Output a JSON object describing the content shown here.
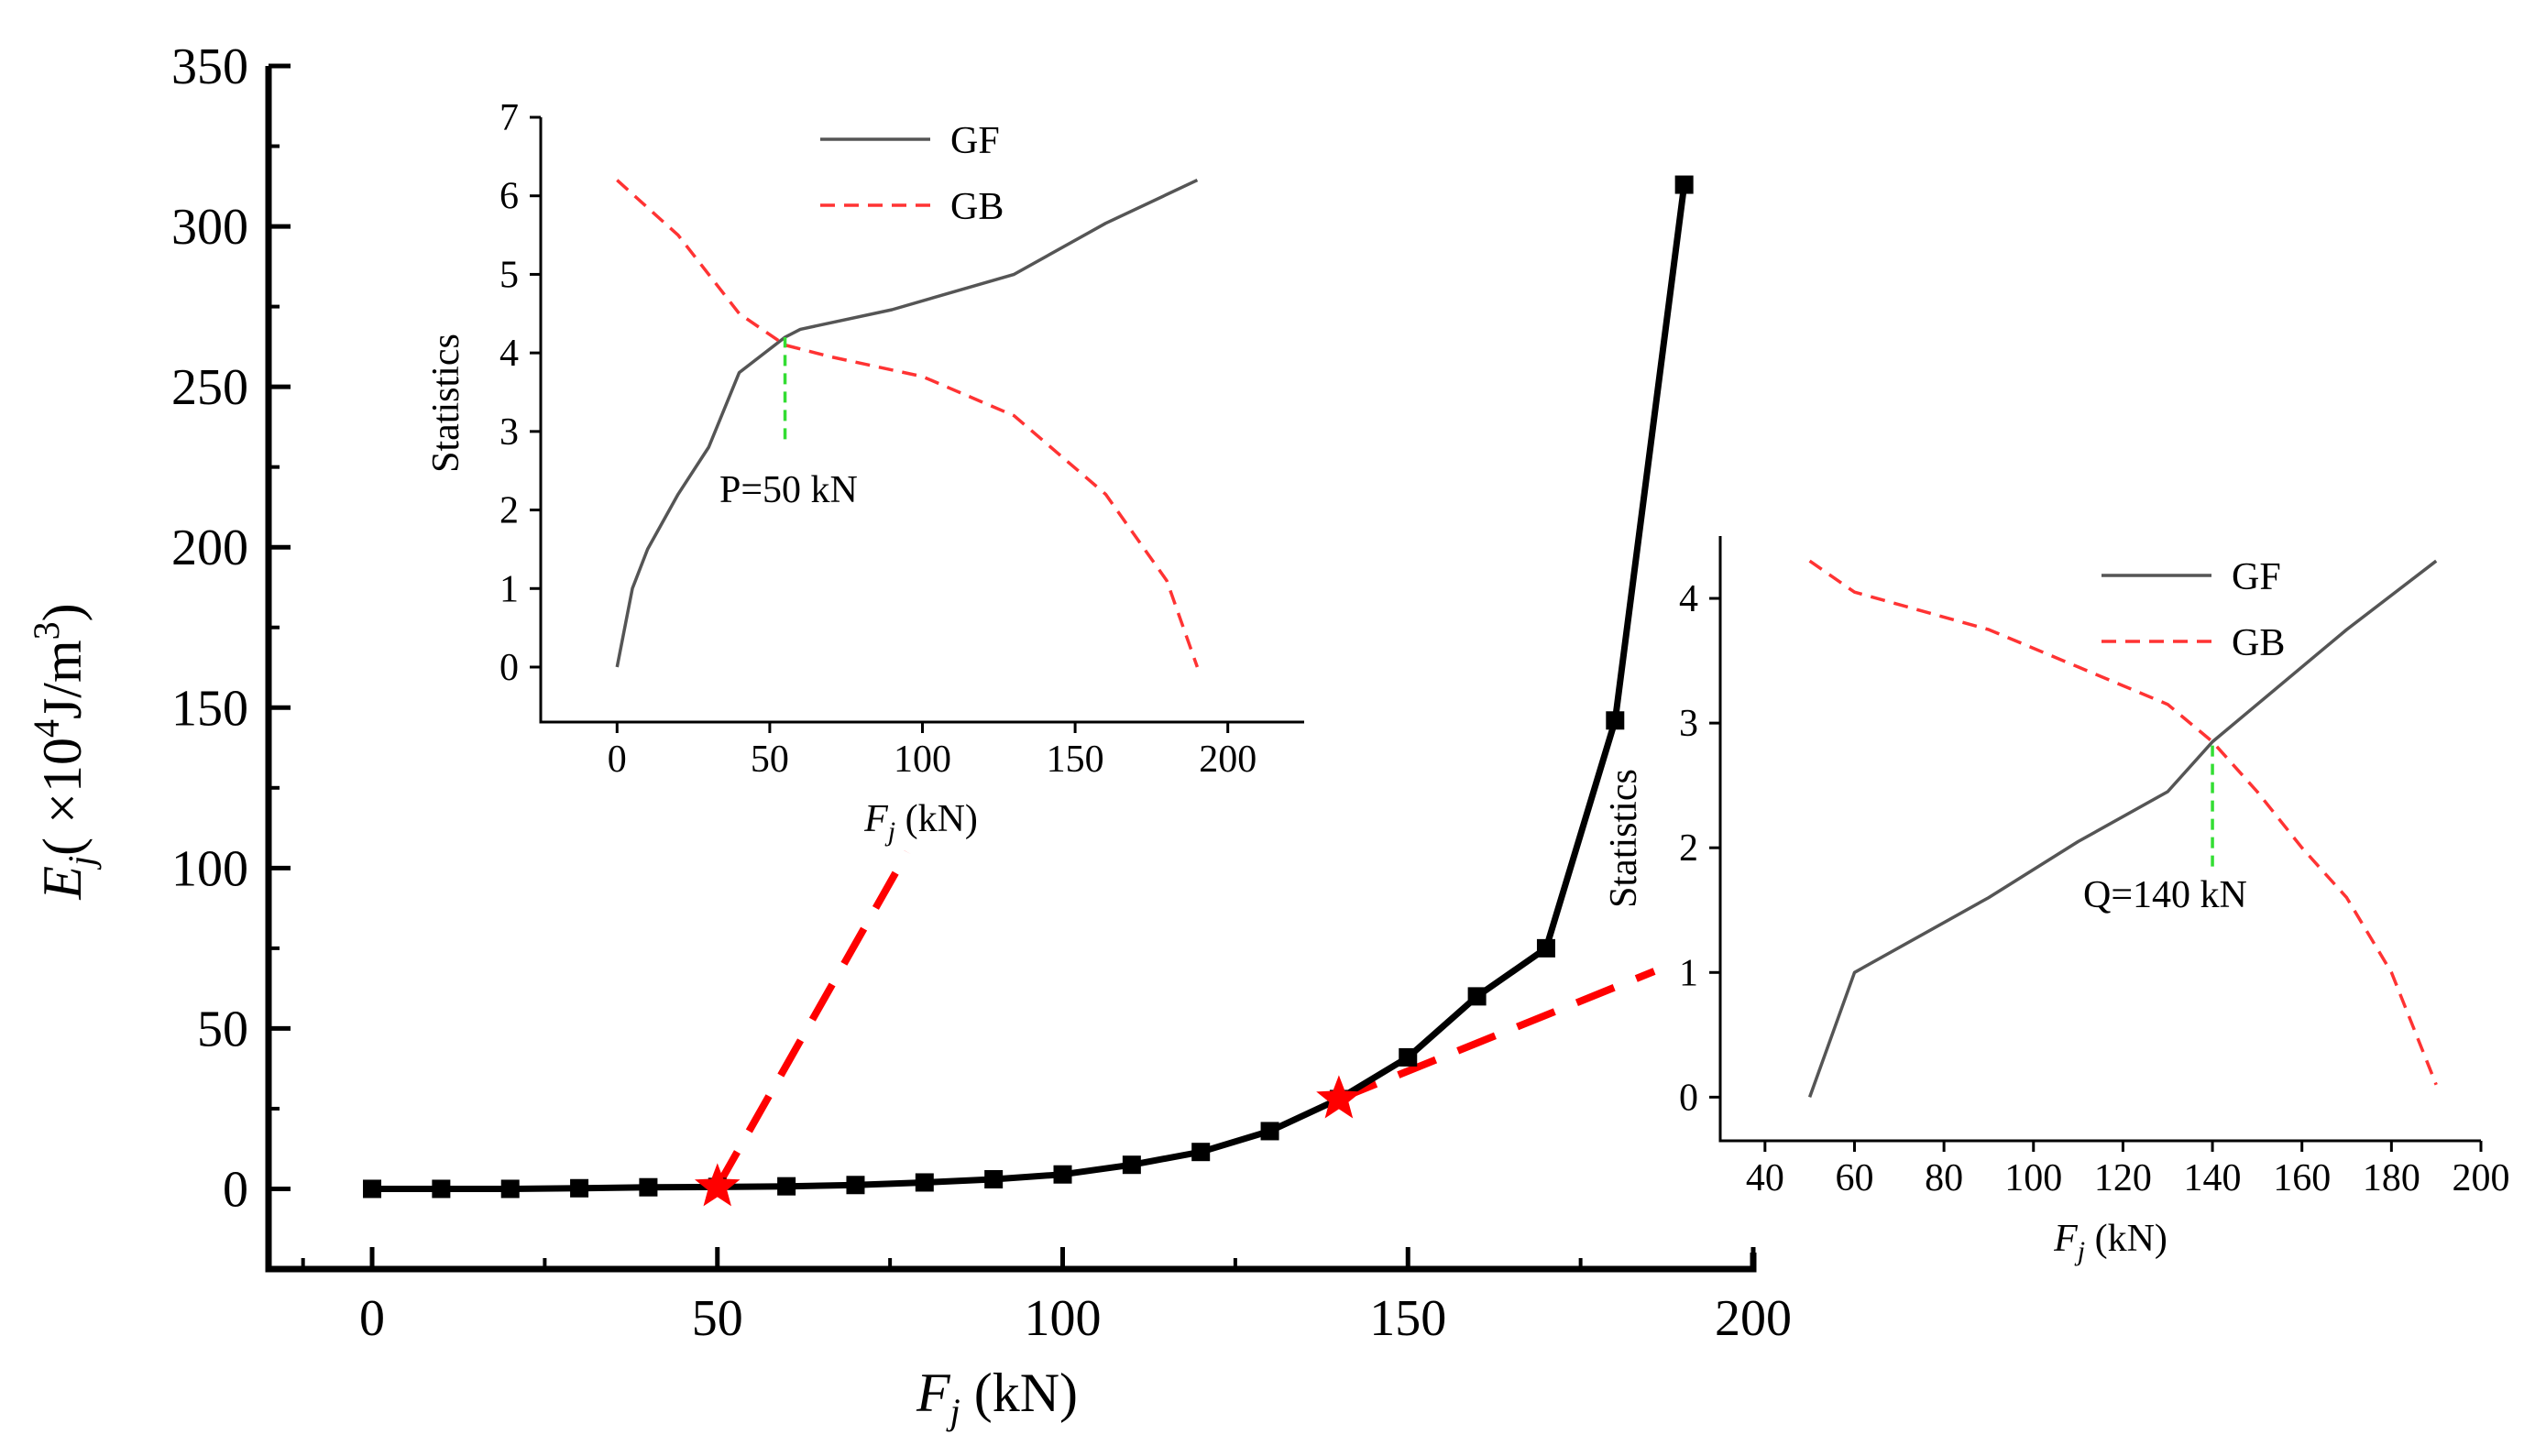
{
  "chart_data": [
    {
      "id": "main",
      "type": "line",
      "title": "",
      "xlabel": "F",
      "xlabel_sub": "j",
      "xlabel_unit": " (kN)",
      "ylabel": "E",
      "ylabel_sub": "j",
      "ylabel_unit_pre": "( ×10",
      "ylabel_unit_sup": "4",
      "ylabel_unit_mid": "J/m",
      "ylabel_unit_sup2": "3",
      "ylabel_unit_post": ")",
      "xlim": [
        -15,
        200
      ],
      "ylim": [
        -25,
        350
      ],
      "xticks": [
        0,
        50,
        100,
        150,
        200
      ],
      "yticks": [
        0,
        50,
        100,
        150,
        200,
        250,
        300,
        350
      ],
      "x": [
        0,
        10,
        20,
        30,
        40,
        50,
        60,
        70,
        80,
        90,
        100,
        110,
        120,
        130,
        140,
        150,
        160,
        170,
        180,
        190
      ],
      "y": [
        0,
        0,
        0,
        0.2,
        0.5,
        0.6,
        0.8,
        1.2,
        2,
        3,
        4.5,
        7.5,
        11.5,
        18,
        28,
        41,
        60,
        75,
        146,
        313
      ],
      "stars": [
        {
          "x": 50,
          "y": 0.6
        },
        {
          "x": 140,
          "y": 28
        }
      ],
      "colors": {
        "line": "#000000",
        "star": "#ff0000",
        "connector": "#ff0000"
      }
    },
    {
      "id": "inset-p",
      "type": "line",
      "xlabel": "F",
      "xlabel_sub": "j",
      "xlabel_unit": " (kN)",
      "ylabel": "Statistics",
      "xlim": [
        -25,
        225
      ],
      "ylim": [
        -0.7,
        7
      ],
      "xticks": [
        0,
        50,
        100,
        150,
        200
      ],
      "yticks": [
        0,
        1,
        2,
        3,
        4,
        5,
        6,
        7
      ],
      "series": [
        {
          "name": "GF",
          "x": [
            0,
            5,
            10,
            20,
            30,
            40,
            50,
            55,
            60,
            90,
            130,
            160,
            190
          ],
          "y": [
            0,
            1,
            1.5,
            2.2,
            2.8,
            3.75,
            4.05,
            4.2,
            4.3,
            4.55,
            5,
            5.65,
            6.2
          ],
          "color": "#555555",
          "dash": "solid"
        },
        {
          "name": "GB",
          "x": [
            0,
            20,
            40,
            55,
            70,
            100,
            130,
            160,
            180,
            190
          ],
          "y": [
            6.2,
            5.5,
            4.5,
            4.1,
            3.95,
            3.7,
            3.2,
            2.2,
            1.1,
            0
          ],
          "color": "#ff3333",
          "dash": "dashed"
        }
      ],
      "marker_x": 55,
      "marker_y_range": [
        2.9,
        4.2
      ],
      "marker_color": "#33dd33",
      "annotation": "P=50 kN"
    },
    {
      "id": "inset-q",
      "type": "line",
      "xlabel": "F",
      "xlabel_sub": "j",
      "xlabel_unit": " (kN)",
      "ylabel": "Statistics",
      "xlim": [
        30,
        200
      ],
      "ylim": [
        -0.35,
        4.5
      ],
      "xticks": [
        40,
        60,
        80,
        100,
        120,
        140,
        160,
        180,
        200
      ],
      "yticks": [
        0,
        1,
        2,
        3,
        4
      ],
      "series": [
        {
          "name": "GF",
          "x": [
            50,
            60,
            90,
            110,
            130,
            140,
            150,
            170,
            190
          ],
          "y": [
            0,
            1,
            1.6,
            2.05,
            2.45,
            2.85,
            3.15,
            3.75,
            4.3
          ],
          "color": "#555555",
          "dash": "solid"
        },
        {
          "name": "GB",
          "x": [
            50,
            60,
            90,
            110,
            130,
            140,
            150,
            160,
            170,
            180,
            190
          ],
          "y": [
            4.3,
            4.05,
            3.75,
            3.45,
            3.15,
            2.85,
            2.45,
            2.0,
            1.6,
            1.0,
            0.1
          ],
          "color": "#ff3333",
          "dash": "dashed"
        }
      ],
      "marker_x": 140,
      "marker_y_range": [
        1.85,
        2.85
      ],
      "marker_color": "#33dd33",
      "annotation": "Q=140 kN"
    }
  ]
}
